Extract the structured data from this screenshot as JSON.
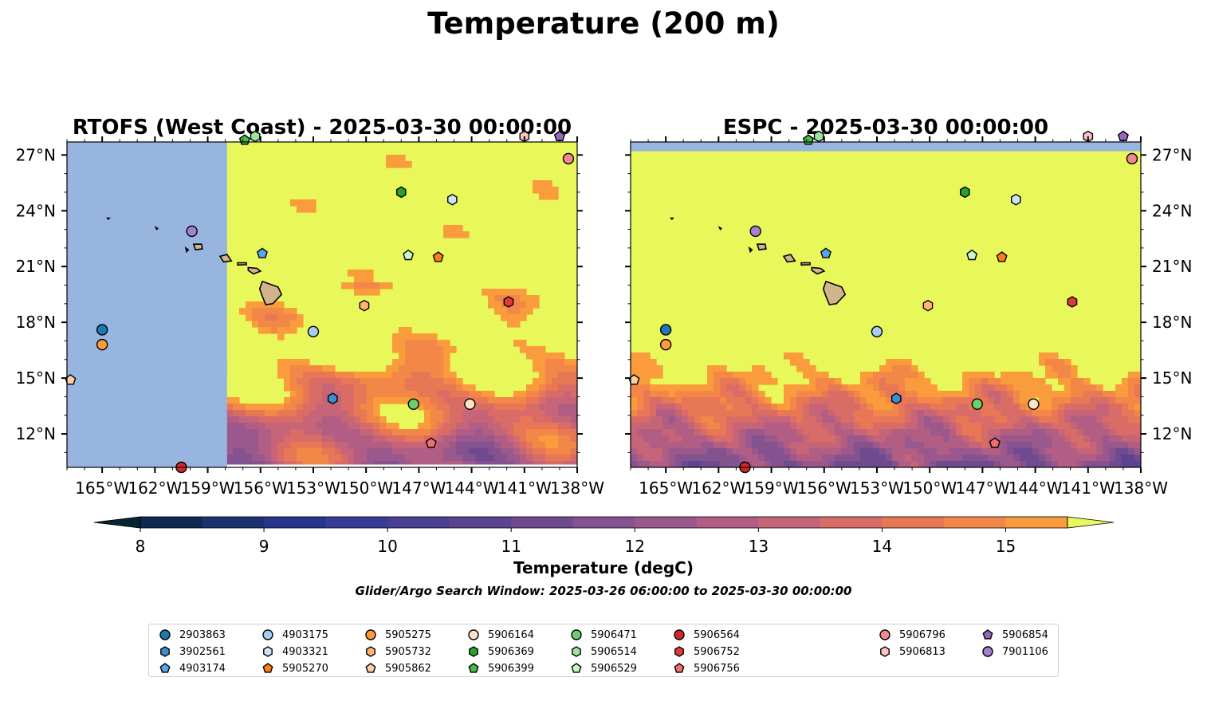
{
  "figure_title": "Temperature (200 m)",
  "colorbar": {
    "label": "Temperature (degC)",
    "ticks": [
      "8",
      "9",
      "10",
      "11",
      "12",
      "13",
      "14",
      "15"
    ],
    "min": 7.5,
    "max": 15.5,
    "step": 0.5,
    "colors": [
      "#052532",
      "#0e2a52",
      "#1b3270",
      "#27368a",
      "#373c94",
      "#493f94",
      "#5b4391",
      "#6f4a8e",
      "#855290",
      "#9a588d",
      "#b15d84",
      "#c66478",
      "#d96c67",
      "#e87756",
      "#f38747",
      "#fa9b3c",
      "#fdb23a",
      "#fcc83f",
      "#f7dc48"
    ],
    "under_color": "#052532",
    "over_color": "#e8f85a"
  },
  "search_window": "Glider/Argo Search Window: 2025-03-26 06:00:00 to 2025-03-30 00:00:00",
  "chart_data": [
    {
      "type": "contour_map",
      "title": "RTOFS (West Coast) - 2025-03-30 00:00:00",
      "xlim": [
        -167,
        -138
      ],
      "ylim": [
        10.2,
        27.7
      ],
      "x_ticks": [
        "165°W",
        "162°W",
        "159°W",
        "156°W",
        "153°W",
        "150°W",
        "147°W",
        "144°W",
        "141°W",
        "138°W"
      ],
      "y_ticks": [
        "27°N",
        "24°N",
        "21°N",
        "18°N",
        "15°N",
        "12°N"
      ],
      "no_data_west_of": -157.9,
      "land_color": "#d2b48c",
      "missing_color": "#98b5e0"
    },
    {
      "type": "contour_map",
      "title": "ESPC - 2025-03-30 00:00:00",
      "xlim": [
        -167,
        -138
      ],
      "ylim": [
        10.2,
        27.7
      ],
      "x_ticks": [
        "165°W",
        "162°W",
        "159°W",
        "156°W",
        "153°W",
        "150°W",
        "147°W",
        "144°W",
        "141°W",
        "138°W"
      ],
      "y_ticks": [
        "27°N",
        "24°N",
        "21°N",
        "18°N",
        "15°N",
        "12°N"
      ],
      "no_data_north_of": 27.2,
      "land_color": "#d2b48c",
      "missing_color": "#98b5e0"
    }
  ],
  "floats": [
    {
      "id": "2903863",
      "lon": -165.0,
      "lat": 17.6,
      "color": "#1f77b4",
      "marker": "circle"
    },
    {
      "id": "3902561",
      "lon": -151.9,
      "lat": 13.9,
      "color": "#3b8fd1",
      "marker": "hexagon"
    },
    {
      "id": "4903174",
      "lon": -155.9,
      "lat": 21.7,
      "color": "#5aa5e8",
      "marker": "pentagon"
    },
    {
      "id": "4903175",
      "lon": -153.0,
      "lat": 17.5,
      "color": "#a6cef0",
      "marker": "circle"
    },
    {
      "id": "4903321",
      "lon": -145.1,
      "lat": 24.6,
      "color": "#cde3f7",
      "marker": "hexagon"
    },
    {
      "id": "5905270",
      "lon": -145.9,
      "lat": 21.5,
      "color": "#ff7f0e",
      "marker": "pentagon"
    },
    {
      "id": "5905275",
      "lon": -165.0,
      "lat": 16.8,
      "color": "#ff9a3c",
      "marker": "circle"
    },
    {
      "id": "5905732",
      "lon": -150.1,
      "lat": 18.9,
      "color": "#ffb573",
      "marker": "hexagon"
    },
    {
      "id": "5905862",
      "lon": -166.8,
      "lat": 14.9,
      "color": "#ffd0a3",
      "marker": "pentagon"
    },
    {
      "id": "5906164",
      "lon": -144.1,
      "lat": 13.6,
      "color": "#ffe2c7",
      "marker": "circle"
    },
    {
      "id": "5906369",
      "lon": -148.0,
      "lat": 25.0,
      "color": "#2ca02c",
      "marker": "hexagon"
    },
    {
      "id": "5906399",
      "lon": -156.9,
      "lat": 27.8,
      "color": "#49b849",
      "marker": "pentagon"
    },
    {
      "id": "5906471",
      "lon": -147.3,
      "lat": 13.6,
      "color": "#6ccf6c",
      "marker": "circle"
    },
    {
      "id": "5906514",
      "lon": -156.3,
      "lat": 28.0,
      "color": "#9de39d",
      "marker": "hexagon"
    },
    {
      "id": "5906529",
      "lon": -147.6,
      "lat": 21.6,
      "color": "#c8f7c5",
      "marker": "pentagon"
    },
    {
      "id": "5906564",
      "lon": -160.5,
      "lat": 10.2,
      "color": "#d62728",
      "marker": "circle"
    },
    {
      "id": "5906752",
      "lon": -141.9,
      "lat": 19.1,
      "color": "#e0393a",
      "marker": "hexagon"
    },
    {
      "id": "5906756",
      "lon": -146.3,
      "lat": 11.5,
      "color": "#f07070",
      "marker": "pentagon"
    },
    {
      "id": "5906796",
      "lon": -138.5,
      "lat": 26.8,
      "color": "#f08a8a",
      "marker": "circle"
    },
    {
      "id": "5906813",
      "lon": -141.0,
      "lat": 28.0,
      "color": "#fbc4c4",
      "marker": "hexagon"
    },
    {
      "id": "5906854",
      "lon": -139.0,
      "lat": 28.0,
      "color": "#9467bd",
      "marker": "pentagon"
    },
    {
      "id": "7901106",
      "lon": -159.9,
      "lat": 22.9,
      "color": "#a57fd0",
      "marker": "circle"
    }
  ]
}
